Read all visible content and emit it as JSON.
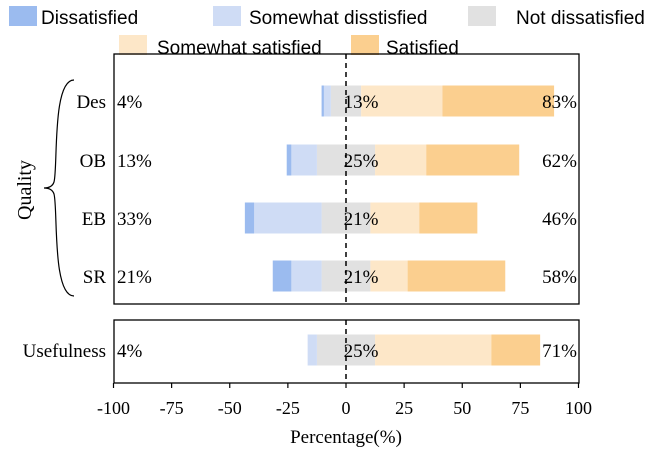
{
  "chart_data": {
    "type": "bar",
    "stacked": "diverging",
    "legend_position": "top",
    "legend": [
      {
        "key": "dissatisfied",
        "label": "Dissatisfied",
        "color": "#9bbbef"
      },
      {
        "key": "somewhat_dissatisfied",
        "label": "Somewhat disstisfied",
        "color": "#cfdcf5"
      },
      {
        "key": "not_dissatisfied",
        "label": "Not dissatisfied",
        "color": "#e1e1e1"
      },
      {
        "key": "somewhat_satisfied",
        "label": "Somewhat satisfied",
        "color": "#fde7c8"
      },
      {
        "key": "satisfied",
        "label": "Satisfied",
        "color": "#fbcf8f"
      }
    ],
    "group_label": "Quality",
    "xlabel": "Percentage(%)",
    "xlim": [
      -100,
      100
    ],
    "xticks": [
      -100,
      -75,
      -50,
      -25,
      0,
      25,
      50,
      75,
      100
    ],
    "xtick_labels": [
      "-100",
      "-75",
      "-50",
      "-25",
      "0",
      "25",
      "50",
      "75",
      "100"
    ],
    "zero_line": "dashed",
    "panels": [
      {
        "categories": [
          "Des",
          "OB",
          "EB",
          "SR"
        ],
        "rows": [
          {
            "label": "Des",
            "dissatisfied": 1,
            "somewhat_dissatisfied": 3,
            "not_dissatisfied": 13,
            "somewhat_satisfied": 35,
            "satisfied": 48,
            "left_label": "4%",
            "center_label": "13%",
            "right_label": "83%"
          },
          {
            "label": "OB",
            "dissatisfied": 2,
            "somewhat_dissatisfied": 11,
            "not_dissatisfied": 25,
            "somewhat_satisfied": 22,
            "satisfied": 40,
            "left_label": "13%",
            "center_label": "25%",
            "right_label": "62%"
          },
          {
            "label": "EB",
            "dissatisfied": 4,
            "somewhat_dissatisfied": 29,
            "not_dissatisfied": 21,
            "somewhat_satisfied": 21,
            "satisfied": 25,
            "left_label": "33%",
            "center_label": "21%",
            "right_label": "46%"
          },
          {
            "label": "SR",
            "dissatisfied": 8,
            "somewhat_dissatisfied": 13,
            "not_dissatisfied": 21,
            "somewhat_satisfied": 16,
            "satisfied": 42,
            "left_label": "21%",
            "center_label": "21%",
            "right_label": "58%"
          }
        ]
      },
      {
        "categories": [
          "Usefulness"
        ],
        "rows": [
          {
            "label": "Usefulness",
            "dissatisfied": 0,
            "somewhat_dissatisfied": 4,
            "not_dissatisfied": 25,
            "somewhat_satisfied": 50,
            "satisfied": 21,
            "left_label": "4%",
            "center_label": "25%",
            "right_label": "71%"
          }
        ]
      }
    ]
  }
}
